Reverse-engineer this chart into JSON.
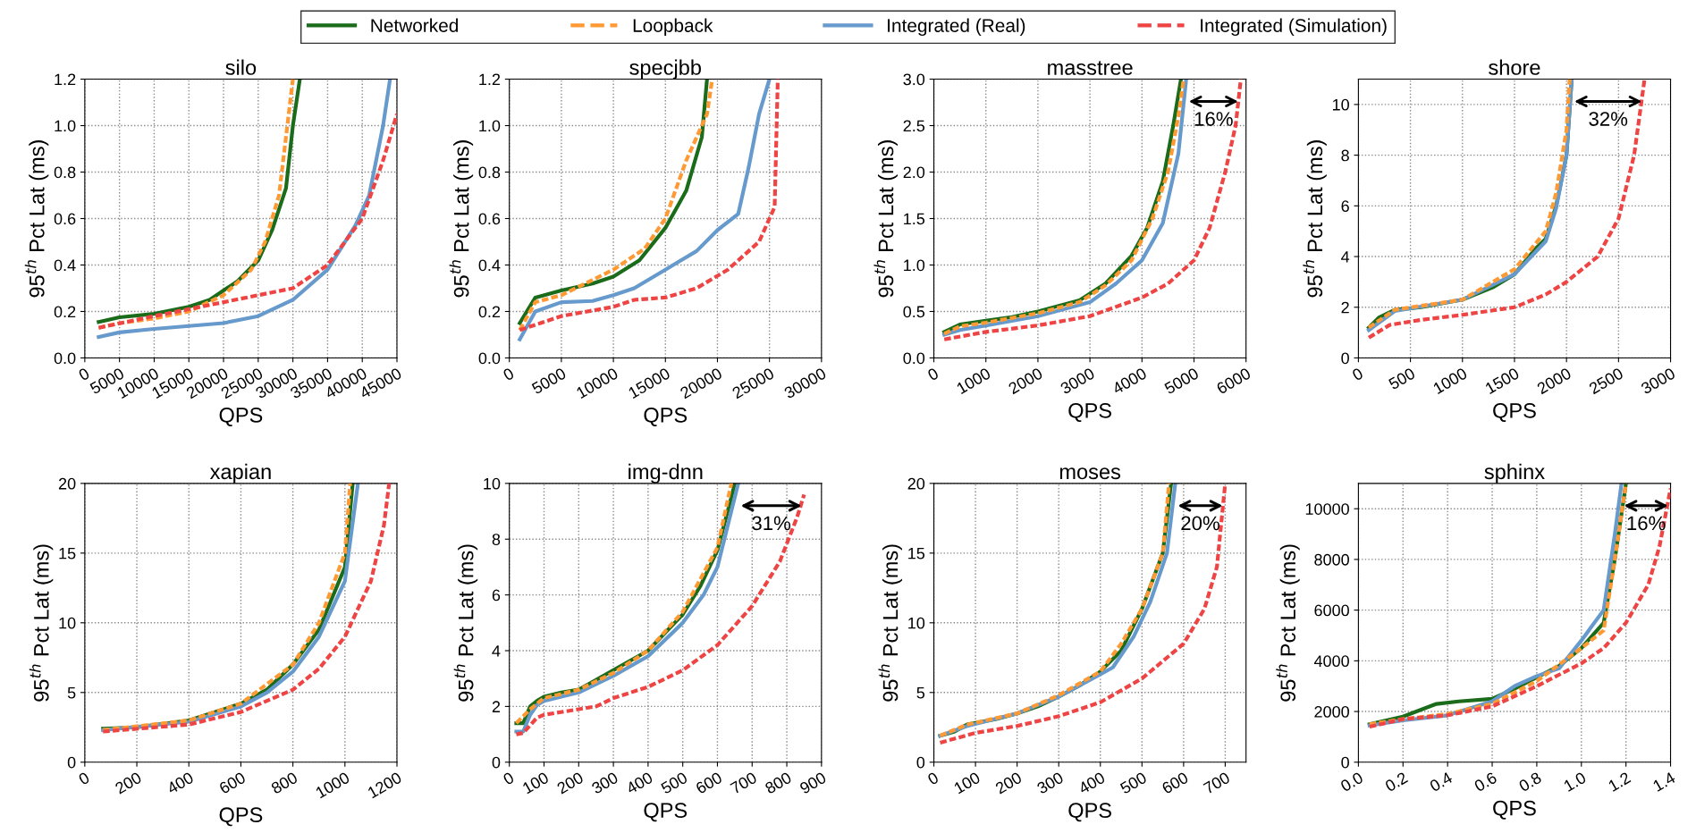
{
  "chart_data": [
    {
      "type": "line",
      "title": "silo",
      "xlabel": "QPS",
      "ylabel": "95$^{th}$ Pct Lat (ms)",
      "xlim": [
        0,
        45000
      ],
      "ylim": [
        0,
        1.2
      ],
      "xticks": [
        0,
        5000,
        10000,
        15000,
        20000,
        25000,
        30000,
        35000,
        40000,
        45000
      ],
      "yticks": [
        {
          "value": 0,
          "label": "0.0"
        },
        0.2,
        0.4,
        0.6,
        0.8,
        {
          "value": 1,
          "label": "1.0"
        },
        1.2
      ],
      "grid": true,
      "legend": "top",
      "series": [
        {
          "name": "Networked",
          "color": "#1a6b1a",
          "line_style": "solid",
          "x": [
            2000,
            5000,
            10000,
            15000,
            18000,
            20000,
            22000,
            25000,
            27000,
            29000,
            30000,
            31000
          ],
          "values": [
            0.155,
            0.175,
            0.19,
            0.22,
            0.25,
            0.29,
            0.33,
            0.42,
            0.55,
            0.73,
            1.0,
            1.2
          ]
        },
        {
          "name": "Loopback",
          "color": "#ff9933",
          "line_style": "dashed",
          "x": [
            2000,
            5000,
            10000,
            15000,
            20000,
            24000,
            26000,
            28000,
            29000,
            30000
          ],
          "values": [
            0.13,
            0.15,
            0.17,
            0.2,
            0.27,
            0.38,
            0.5,
            0.7,
            0.95,
            1.2
          ]
        },
        {
          "name": "Integrated (Real)",
          "color": "#6699cc",
          "line_style": "solid",
          "x": [
            2000,
            5000,
            10000,
            20000,
            25000,
            30000,
            35000,
            39000,
            41000,
            43000,
            44000
          ],
          "values": [
            0.09,
            0.11,
            0.125,
            0.15,
            0.18,
            0.25,
            0.38,
            0.57,
            0.7,
            1.0,
            1.2
          ]
        },
        {
          "name": "Integrated (Simulation)",
          "color": "#ee4444",
          "line_style": "dashed",
          "x": [
            2000,
            10000,
            20000,
            30000,
            35000,
            40000,
            43000,
            45000
          ],
          "values": [
            0.13,
            0.18,
            0.24,
            0.3,
            0.4,
            0.6,
            0.85,
            1.05
          ]
        }
      ]
    },
    {
      "type": "line",
      "title": "specjbb",
      "xlabel": "QPS",
      "ylabel": "95$^{th}$ Pct Lat (ms)",
      "xlim": [
        0,
        30000
      ],
      "ylim": [
        0,
        1.2
      ],
      "xticks": [
        0,
        5000,
        10000,
        15000,
        20000,
        25000,
        30000
      ],
      "yticks": [
        {
          "value": 0,
          "label": "0.0"
        },
        0.2,
        0.4,
        0.6,
        0.8,
        {
          "value": 1,
          "label": "1.0"
        },
        1.2
      ],
      "grid": true,
      "series": [
        {
          "name": "Networked",
          "color": "#1a6b1a",
          "line_style": "solid",
          "x": [
            1000,
            2500,
            5000,
            8000,
            10000,
            12500,
            15000,
            17000,
            18500,
            19000
          ],
          "values": [
            0.15,
            0.26,
            0.29,
            0.32,
            0.35,
            0.42,
            0.56,
            0.72,
            0.95,
            1.2
          ]
        },
        {
          "name": "Loopback",
          "color": "#ff9933",
          "line_style": "dashed",
          "x": [
            1000,
            2500,
            5000,
            10000,
            13000,
            15000,
            17000,
            19000,
            19500
          ],
          "values": [
            0.12,
            0.24,
            0.27,
            0.38,
            0.47,
            0.6,
            0.85,
            1.05,
            1.2
          ]
        },
        {
          "name": "Integrated (Real)",
          "color": "#6699cc",
          "line_style": "solid",
          "x": [
            1000,
            2500,
            5000,
            8000,
            10000,
            12000,
            15000,
            18000,
            20000,
            22000,
            23000,
            24000,
            25000
          ],
          "values": [
            0.08,
            0.2,
            0.24,
            0.245,
            0.27,
            0.3,
            0.38,
            0.46,
            0.55,
            0.62,
            0.82,
            1.05,
            1.2
          ]
        },
        {
          "name": "Integrated (Simulation)",
          "color": "#ee4444",
          "line_style": "dashed",
          "x": [
            1000,
            3000,
            5000,
            10000,
            12000,
            15000,
            18000,
            21000,
            24000,
            25500,
            25800
          ],
          "values": [
            0.12,
            0.15,
            0.18,
            0.22,
            0.25,
            0.26,
            0.3,
            0.38,
            0.5,
            0.65,
            1.2
          ]
        }
      ]
    },
    {
      "type": "line",
      "title": "masstree",
      "xlabel": "QPS",
      "ylabel": "95$^{th}$ Pct Lat (ms)",
      "xlim": [
        0,
        6000
      ],
      "ylim": [
        0,
        3.0
      ],
      "xticks": [
        0,
        1000,
        2000,
        3000,
        4000,
        5000,
        6000
      ],
      "yticks": [
        {
          "value": 0,
          "label": "0.0"
        },
        0.5,
        {
          "value": 1,
          "label": "1.0"
        },
        1.5,
        {
          "value": 2,
          "label": "2.0"
        },
        2.5,
        {
          "value": 3,
          "label": "3.0"
        }
      ],
      "grid": true,
      "annotations": [
        "16%"
      ],
      "series": [
        {
          "name": "Networked",
          "color": "#1a6b1a",
          "line_style": "solid",
          "x": [
            200,
            500,
            1000,
            1500,
            2000,
            2800,
            3300,
            3800,
            4100,
            4400,
            4600,
            4750
          ],
          "values": [
            0.28,
            0.36,
            0.4,
            0.44,
            0.5,
            0.62,
            0.8,
            1.1,
            1.4,
            1.9,
            2.5,
            3.0
          ]
        },
        {
          "name": "Loopback",
          "color": "#ff9933",
          "line_style": "dashed",
          "x": [
            200,
            500,
            1000,
            2000,
            2800,
            3300,
            3800,
            4200,
            4500,
            4700,
            4800
          ],
          "values": [
            0.26,
            0.34,
            0.38,
            0.48,
            0.6,
            0.78,
            1.05,
            1.5,
            2.0,
            2.6,
            3.0
          ]
        },
        {
          "name": "Integrated (Real)",
          "color": "#6699cc",
          "line_style": "solid",
          "x": [
            200,
            500,
            1000,
            2000,
            3000,
            3500,
            4000,
            4400,
            4700,
            4850
          ],
          "values": [
            0.25,
            0.3,
            0.35,
            0.45,
            0.6,
            0.8,
            1.05,
            1.45,
            2.2,
            3.0
          ]
        },
        {
          "name": "Integrated (Simulation)",
          "color": "#ee4444",
          "line_style": "dashed",
          "x": [
            200,
            1000,
            2000,
            3000,
            4000,
            4500,
            5000,
            5300,
            5600,
            5800,
            5900
          ],
          "values": [
            0.2,
            0.28,
            0.35,
            0.45,
            0.65,
            0.8,
            1.05,
            1.4,
            2.0,
            2.5,
            3.0
          ]
        }
      ]
    },
    {
      "type": "line",
      "title": "shore",
      "xlabel": "QPS",
      "ylabel": "95$^{th}$ Pct Lat (ms)",
      "xlim": [
        0,
        3000
      ],
      "ylim": [
        0,
        11
      ],
      "xticks": [
        0,
        500,
        1000,
        1500,
        2000,
        2500,
        3000
      ],
      "yticks": [
        0,
        2,
        4,
        6,
        8,
        10
      ],
      "grid": true,
      "annotations": [
        "32%"
      ],
      "series": [
        {
          "name": "Networked",
          "color": "#1a6b1a",
          "line_style": "solid",
          "x": [
            100,
            200,
            350,
            600,
            1000,
            1300,
            1500,
            1700,
            1800,
            1900,
            2000,
            2050
          ],
          "values": [
            1.2,
            1.6,
            1.9,
            2.0,
            2.3,
            2.8,
            3.3,
            4.3,
            4.7,
            6.0,
            8.0,
            11
          ]
        },
        {
          "name": "Loopback",
          "color": "#ff9933",
          "line_style": "dashed",
          "x": [
            100,
            350,
            1000,
            1500,
            1800,
            1900,
            2000,
            2030
          ],
          "values": [
            1.2,
            1.9,
            2.3,
            3.5,
            5,
            6.5,
            9,
            11
          ]
        },
        {
          "name": "Integrated (Real)",
          "color": "#6699cc",
          "line_style": "solid",
          "x": [
            100,
            350,
            1000,
            1500,
            1800,
            1900,
            2000,
            2050
          ],
          "values": [
            1.1,
            1.85,
            2.3,
            3.3,
            4.6,
            5.9,
            8,
            11
          ]
        },
        {
          "name": "Integrated (Simulation)",
          "color": "#ee4444",
          "line_style": "dashed",
          "x": [
            100,
            300,
            600,
            1000,
            1500,
            1800,
            2000,
            2300,
            2500,
            2650,
            2750
          ],
          "values": [
            0.8,
            1.3,
            1.5,
            1.7,
            2.0,
            2.5,
            3.0,
            4.0,
            5.5,
            8,
            11
          ]
        }
      ]
    },
    {
      "type": "line",
      "title": "xapian",
      "xlabel": "QPS",
      "ylabel": "95$^{th}$ Pct Lat (ms)",
      "xlim": [
        0,
        1200
      ],
      "ylim": [
        0,
        20
      ],
      "xticks": [
        0,
        200,
        400,
        600,
        800,
        1000,
        1200
      ],
      "yticks": [
        0,
        5,
        10,
        15,
        20
      ],
      "grid": true,
      "series": [
        {
          "name": "Networked",
          "color": "#1a6b1a",
          "line_style": "solid",
          "x": [
            70,
            200,
            400,
            600,
            700,
            800,
            900,
            1000,
            1030
          ],
          "values": [
            2.4,
            2.5,
            3.0,
            4.2,
            5.2,
            7,
            9.5,
            14,
            20
          ]
        },
        {
          "name": "Loopback",
          "color": "#ff9933",
          "line_style": "dashed",
          "x": [
            70,
            400,
            600,
            800,
            900,
            1000,
            1020
          ],
          "values": [
            2.3,
            3.0,
            4.2,
            7,
            10,
            15,
            20
          ]
        },
        {
          "name": "Integrated (Real)",
          "color": "#6699cc",
          "line_style": "solid",
          "x": [
            70,
            400,
            600,
            700,
            800,
            900,
            1000,
            1050
          ],
          "values": [
            2.3,
            2.9,
            4.0,
            5.0,
            6.5,
            9,
            13,
            20
          ]
        },
        {
          "name": "Integrated (Simulation)",
          "color": "#ee4444",
          "line_style": "dashed",
          "x": [
            70,
            400,
            600,
            800,
            900,
            1000,
            1100,
            1150,
            1170
          ],
          "values": [
            2.2,
            2.7,
            3.6,
            5.2,
            6.7,
            9,
            13,
            17,
            20
          ]
        }
      ]
    },
    {
      "type": "line",
      "title": "img-dnn",
      "xlabel": "QPS",
      "ylabel": "95$^{th}$ Pct Lat (ms)",
      "xlim": [
        0,
        900
      ],
      "ylim": [
        0,
        10
      ],
      "xticks": [
        0,
        100,
        200,
        300,
        400,
        500,
        600,
        700,
        800,
        900
      ],
      "yticks": [
        0,
        2,
        4,
        6,
        8,
        10
      ],
      "grid": true,
      "annotations": [
        "31%"
      ],
      "series": [
        {
          "name": "Networked",
          "color": "#1a6b1a",
          "line_style": "solid",
          "x": [
            20,
            40,
            60,
            80,
            100,
            150,
            200,
            300,
            400,
            500,
            550,
            600,
            640,
            650
          ],
          "values": [
            1.4,
            1.4,
            2.0,
            2.2,
            2.35,
            2.5,
            2.6,
            3.3,
            4.0,
            5.3,
            6.3,
            7.6,
            9.5,
            10
          ]
        },
        {
          "name": "Loopback",
          "color": "#ff9933",
          "line_style": "dashed",
          "x": [
            20,
            60,
            100,
            200,
            300,
            400,
            500,
            600,
            640
          ],
          "values": [
            1.4,
            1.9,
            2.3,
            2.6,
            3.2,
            4.0,
            5.4,
            7.7,
            10
          ]
        },
        {
          "name": "Integrated (Real)",
          "color": "#6699cc",
          "line_style": "solid",
          "x": [
            20,
            40,
            60,
            80,
            100,
            200,
            300,
            400,
            500,
            560,
            600,
            640,
            660
          ],
          "values": [
            1.1,
            1.1,
            1.7,
            2.05,
            2.2,
            2.5,
            3.1,
            3.8,
            5.0,
            6.0,
            7.0,
            9,
            10
          ]
        },
        {
          "name": "Integrated (Simulation)",
          "color": "#ee4444",
          "line_style": "dashed",
          "x": [
            20,
            40,
            80,
            100,
            200,
            250,
            300,
            400,
            500,
            600,
            700,
            780,
            830,
            850
          ],
          "values": [
            1.0,
            1.05,
            1.6,
            1.7,
            1.9,
            2.0,
            2.3,
            2.7,
            3.3,
            4.2,
            5.6,
            7.2,
            8.8,
            9.6
          ]
        }
      ]
    },
    {
      "type": "line",
      "title": "moses",
      "xlabel": "QPS",
      "ylabel": "95$^{th}$ Pct Lat (ms)",
      "xlim": [
        0,
        750
      ],
      "ylim": [
        0,
        20
      ],
      "xticks": [
        0,
        100,
        200,
        300,
        400,
        500,
        600,
        700
      ],
      "yticks": [
        0,
        5,
        10,
        15,
        20
      ],
      "grid": true,
      "annotations": [
        "20%"
      ],
      "series": [
        {
          "name": "Networked",
          "color": "#1a6b1a",
          "line_style": "solid",
          "x": [
            15,
            50,
            80,
            150,
            200,
            250,
            300,
            350,
            400,
            450,
            500,
            550,
            570
          ],
          "values": [
            1.9,
            2.2,
            2.7,
            3.1,
            3.5,
            4.0,
            4.7,
            5.5,
            6.5,
            8,
            11,
            15,
            20
          ]
        },
        {
          "name": "Loopback",
          "color": "#ff9933",
          "line_style": "dashed",
          "x": [
            15,
            80,
            200,
            300,
            400,
            450,
            500,
            550,
            565
          ],
          "values": [
            1.9,
            2.7,
            3.5,
            4.8,
            6.5,
            8.5,
            11,
            15,
            20
          ]
        },
        {
          "name": "Integrated (Real)",
          "color": "#6699cc",
          "line_style": "solid",
          "x": [
            15,
            80,
            200,
            300,
            400,
            430,
            480,
            520,
            560,
            580
          ],
          "values": [
            1.9,
            2.6,
            3.5,
            4.7,
            6.3,
            6.8,
            9,
            11.5,
            15,
            20
          ]
        },
        {
          "name": "Integrated (Simulation)",
          "color": "#ee4444",
          "line_style": "dashed",
          "x": [
            15,
            100,
            200,
            300,
            400,
            500,
            600,
            650,
            680,
            700
          ],
          "values": [
            1.4,
            2.1,
            2.6,
            3.3,
            4.3,
            6.0,
            8.5,
            11,
            14,
            20
          ]
        }
      ]
    },
    {
      "type": "line",
      "title": "sphinx",
      "xlabel": "QPS",
      "ylabel": "95$^{th}$ Pct Lat (ms)",
      "xlim": [
        0,
        1.4
      ],
      "ylim": [
        0,
        11000
      ],
      "xticks": [
        {
          "value": 0,
          "label": "0.0"
        },
        0.2,
        0.4,
        0.6,
        0.8,
        {
          "value": 1,
          "label": "1.0"
        },
        1.2,
        1.4
      ],
      "yticks": [
        0,
        2000,
        4000,
        6000,
        8000,
        10000
      ],
      "grid": true,
      "annotations": [
        "16%"
      ],
      "series": [
        {
          "name": "Networked",
          "color": "#1a6b1a",
          "line_style": "solid",
          "x": [
            0.05,
            0.2,
            0.35,
            0.45,
            0.6,
            0.7,
            0.9,
            1.0,
            1.1,
            1.15,
            1.2
          ],
          "values": [
            1500,
            1800,
            2300,
            2400,
            2500,
            2900,
            3800,
            4500,
            5500,
            8000,
            11000
          ]
        },
        {
          "name": "Loopback",
          "color": "#ff9933",
          "line_style": "dashed",
          "x": [
            0.05,
            0.2,
            0.4,
            0.6,
            0.8,
            1.0,
            1.1,
            1.15,
            1.2
          ],
          "values": [
            1500,
            1700,
            1900,
            2300,
            3200,
            4500,
            5200,
            8000,
            11000
          ]
        },
        {
          "name": "Integrated (Real)",
          "color": "#6699cc",
          "line_style": "solid",
          "x": [
            0.05,
            0.2,
            0.4,
            0.6,
            0.7,
            0.8,
            0.9,
            1.0,
            1.1,
            1.15,
            1.18
          ],
          "values": [
            1450,
            1650,
            1850,
            2400,
            3000,
            3400,
            3700,
            4800,
            6000,
            9000,
            11000
          ]
        },
        {
          "name": "Integrated (Simulation)",
          "color": "#ee4444",
          "line_style": "dashed",
          "x": [
            0.05,
            0.2,
            0.4,
            0.6,
            0.8,
            1.0,
            1.1,
            1.2,
            1.3,
            1.35,
            1.4
          ],
          "values": [
            1400,
            1700,
            1850,
            2200,
            3000,
            3900,
            4500,
            5500,
            7000,
            8500,
            10800
          ]
        }
      ]
    }
  ]
}
